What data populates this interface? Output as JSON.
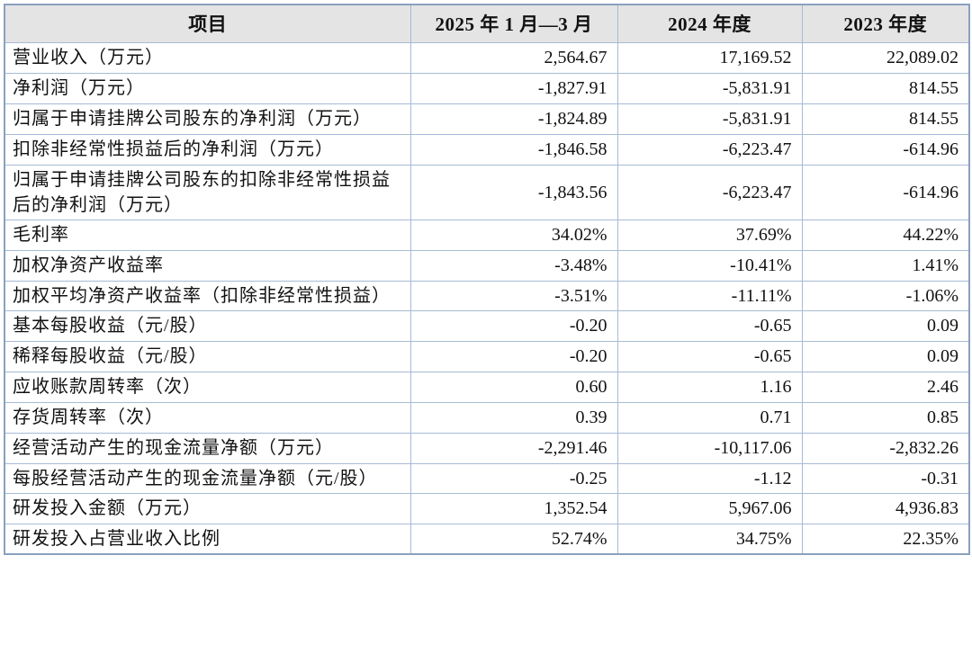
{
  "table": {
    "headers": [
      "项目",
      "2025 年 1 月—3 月",
      "2024 年度",
      "2023 年度"
    ],
    "rows": [
      {
        "label": "营业收入（万元）",
        "values": [
          "2,564.67",
          "17,169.52",
          "22,089.02"
        ]
      },
      {
        "label": "净利润（万元）",
        "values": [
          "-1,827.91",
          "-5,831.91",
          "814.55"
        ]
      },
      {
        "label": "归属于申请挂牌公司股东的净利润（万元）",
        "values": [
          "-1,824.89",
          "-5,831.91",
          "814.55"
        ]
      },
      {
        "label": "扣除非经常性损益后的净利润（万元）",
        "values": [
          "-1,846.58",
          "-6,223.47",
          "-614.96"
        ]
      },
      {
        "label": "归属于申请挂牌公司股东的扣除非经常性损益后的净利润（万元）",
        "values": [
          "-1,843.56",
          "-6,223.47",
          "-614.96"
        ]
      },
      {
        "label": "毛利率",
        "values": [
          "34.02%",
          "37.69%",
          "44.22%"
        ]
      },
      {
        "label": "加权净资产收益率",
        "values": [
          "-3.48%",
          "-10.41%",
          "1.41%"
        ]
      },
      {
        "label": "加权平均净资产收益率（扣除非经常性损益）",
        "values": [
          "-3.51%",
          "-11.11%",
          "-1.06%"
        ]
      },
      {
        "label": "基本每股收益（元/股）",
        "values": [
          "-0.20",
          "-0.65",
          "0.09"
        ]
      },
      {
        "label": "稀释每股收益（元/股）",
        "values": [
          "-0.20",
          "-0.65",
          "0.09"
        ]
      },
      {
        "label": "应收账款周转率（次）",
        "values": [
          "0.60",
          "1.16",
          "2.46"
        ]
      },
      {
        "label": "存货周转率（次）",
        "values": [
          "0.39",
          "0.71",
          "0.85"
        ]
      },
      {
        "label": "经营活动产生的现金流量净额（万元）",
        "values": [
          "-2,291.46",
          "-10,117.06",
          "-2,832.26"
        ]
      },
      {
        "label": "每股经营活动产生的现金流量净额（元/股）",
        "values": [
          "-0.25",
          "-1.12",
          "-0.31"
        ]
      },
      {
        "label": "研发投入金额（万元）",
        "values": [
          "1,352.54",
          "5,967.06",
          "4,936.83"
        ]
      },
      {
        "label": "研发投入占营业收入比例",
        "values": [
          "52.74%",
          "34.75%",
          "22.35%"
        ]
      }
    ]
  },
  "colors": {
    "outer_border": "#8aa0c0",
    "inner_border": "#a7bad6",
    "header_background": "#e4e4e4",
    "text": "#111111",
    "page_background": "#ffffff"
  }
}
